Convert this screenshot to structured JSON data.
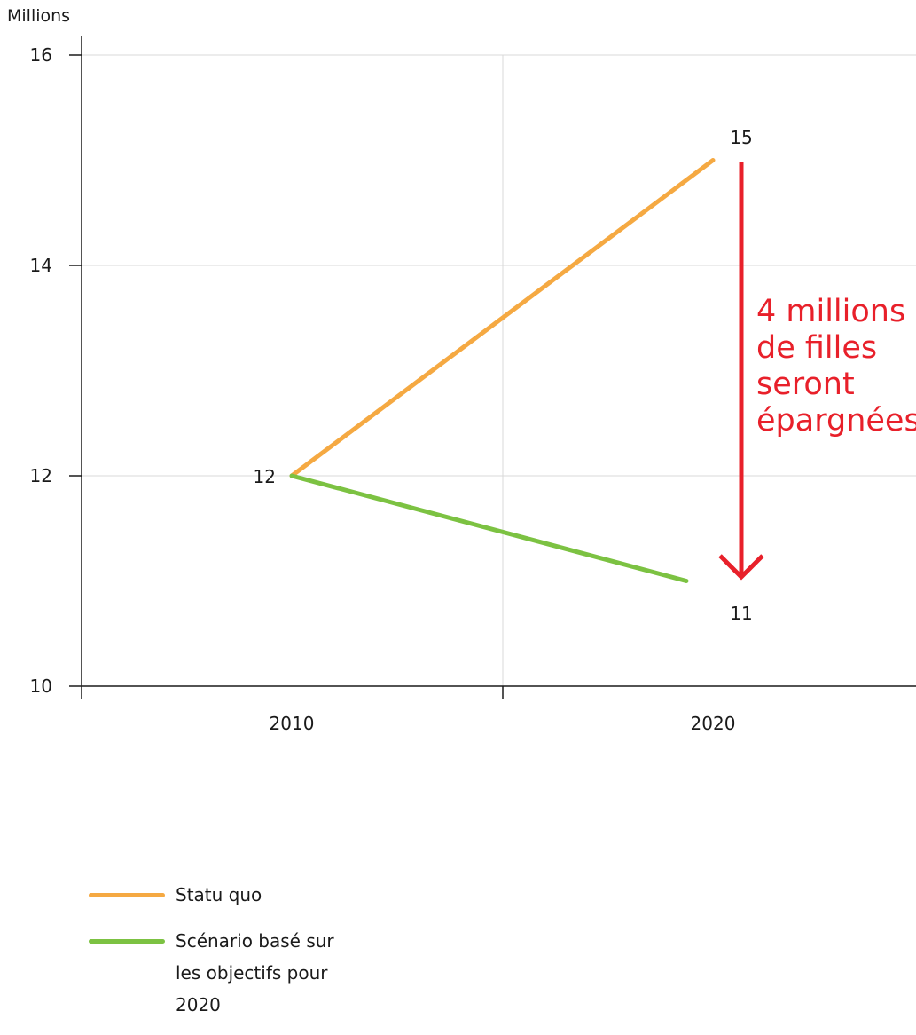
{
  "chart_data": {
    "type": "line",
    "y_unit_label": "Millions",
    "x": [
      "2010",
      "2020"
    ],
    "ylim": [
      10,
      16
    ],
    "y_ticks": [
      10,
      12,
      14,
      16
    ],
    "grid": true,
    "series": [
      {
        "name": "Statu quo",
        "values": [
          12,
          15
        ],
        "color": "#f5a942"
      },
      {
        "name": "Scénario basé sur les objectifs pour 2020",
        "values": [
          12,
          11
        ],
        "color": "#7cc242"
      }
    ],
    "data_labels": [
      "12",
      "15",
      "11"
    ],
    "annotation": {
      "lines": [
        "4 millions",
        "de filles",
        "seront",
        "épargnées"
      ],
      "color": "#e8202a"
    },
    "legend_position": "bottom-left"
  }
}
